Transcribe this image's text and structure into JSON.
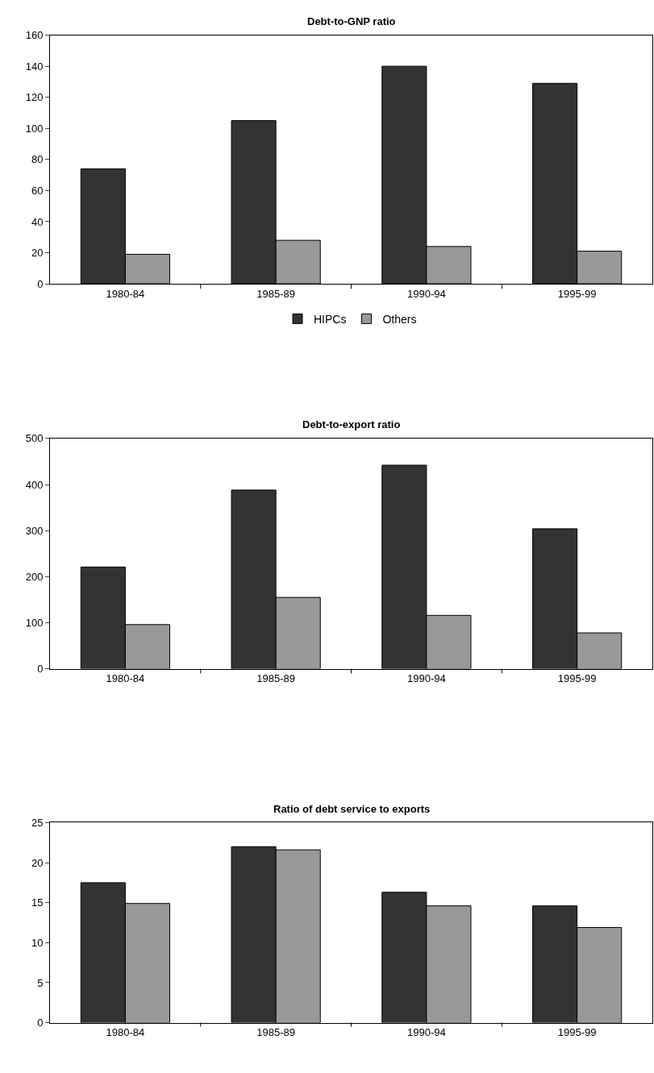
{
  "chart_data": [
    {
      "type": "bar",
      "title": "Debt-to-GNP ratio",
      "categories": [
        "1980-84",
        "1985-89",
        "1990-94",
        "1995-99"
      ],
      "ylim": [
        0,
        160
      ],
      "yticks": [
        0,
        20,
        40,
        60,
        80,
        100,
        120,
        140,
        160
      ],
      "legend": "bottom",
      "series": [
        {
          "name": "HIPCs",
          "color": "#333333",
          "values": [
            74,
            105,
            140,
            129
          ]
        },
        {
          "name": "Others",
          "color": "#999999",
          "values": [
            19,
            28,
            24,
            21
          ]
        }
      ]
    },
    {
      "type": "bar",
      "title": "Debt-to-export ratio",
      "categories": [
        "1980-84",
        "1985-89",
        "1990-94",
        "1995-99"
      ],
      "ylim": [
        0,
        500
      ],
      "yticks": [
        0,
        100,
        200,
        300,
        400,
        500
      ],
      "series": [
        {
          "color": "#333333",
          "values": [
            221,
            388,
            442,
            304
          ]
        },
        {
          "color": "#999999",
          "values": [
            96,
            155,
            116,
            78
          ]
        }
      ]
    },
    {
      "type": "bar",
      "title": "Ratio of debt service to exports",
      "categories": [
        "1980-84",
        "1985-89",
        "1990-94",
        "1995-99"
      ],
      "ylim": [
        0,
        25
      ],
      "yticks": [
        0,
        5,
        10,
        15,
        20,
        25
      ],
      "series": [
        {
          "color": "#333333",
          "values": [
            17.5,
            22,
            16.3,
            14.6
          ]
        },
        {
          "color": "#999999",
          "values": [
            14.9,
            21.6,
            14.6,
            11.9
          ]
        }
      ]
    }
  ]
}
